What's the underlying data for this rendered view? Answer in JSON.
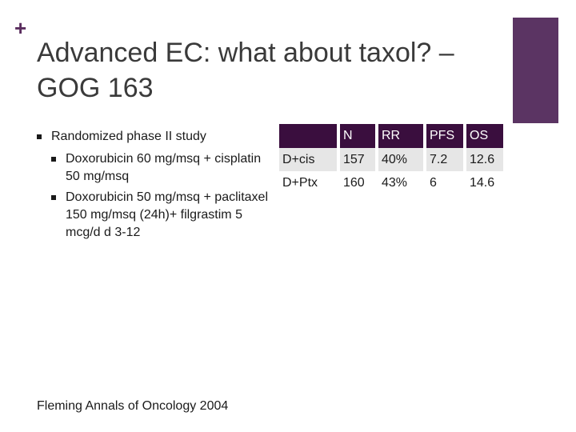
{
  "slide": {
    "title": "Advanced EC: what about taxol? – GOG 163",
    "bullets": [
      {
        "text": "Randomized phase II study",
        "sub": [
          "Doxorubicin 60 mg/msq + cisplatin 50 mg/msq",
          "Doxorubicin 50 mg/msq + paclitaxel 150 mg/msq (24h)+ filgrastim 5 mcg/d d 3-12"
        ]
      }
    ],
    "footnote": "Fleming Annals of Oncology 2004",
    "colors": {
      "accent": "#5b3463",
      "header": "#3a0e3e"
    }
  },
  "table": {
    "headers": [
      "",
      "N",
      "RR",
      "PFS",
      "OS"
    ],
    "rows": [
      [
        "D+cis",
        "157",
        "40%",
        "7.2",
        "12.6"
      ],
      [
        "D+Ptx",
        "160",
        "43%",
        "6",
        "14.6"
      ]
    ]
  }
}
